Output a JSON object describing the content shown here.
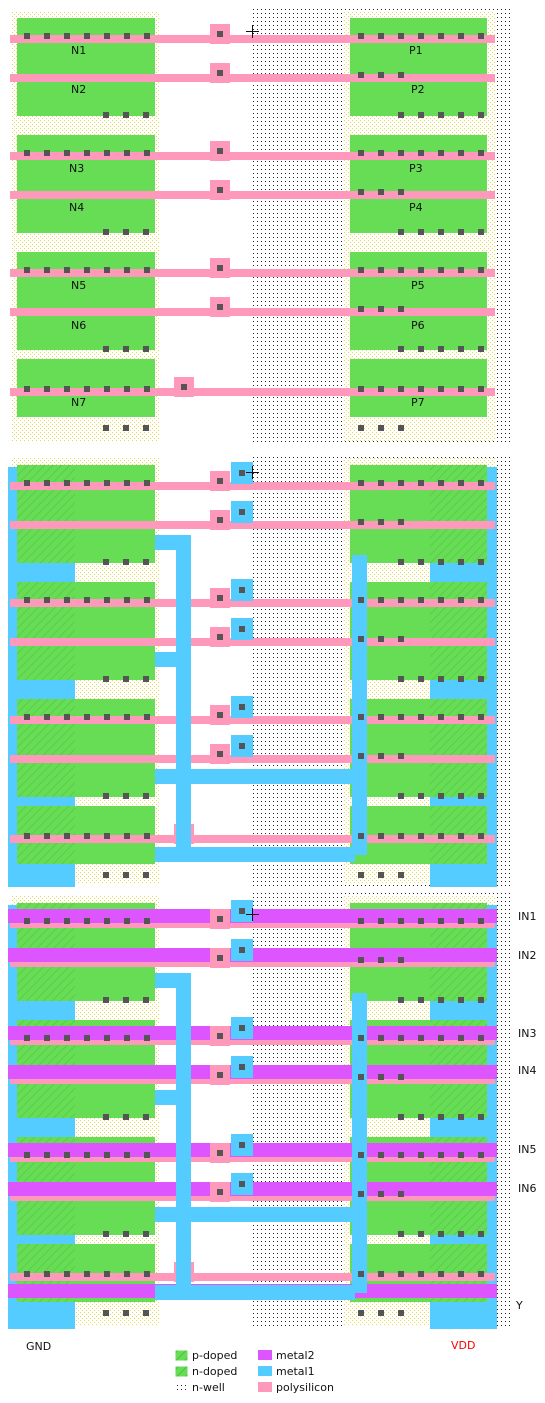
{
  "transistors": {
    "nmos": [
      "N1",
      "N2",
      "N3",
      "N4",
      "N5",
      "N6",
      "N7"
    ],
    "pmos": [
      "P1",
      "P2",
      "P3",
      "P4",
      "P5",
      "P6",
      "P7"
    ]
  },
  "pins": {
    "in1": "IN1",
    "in2": "IN2",
    "in3": "IN3",
    "in4": "IN4",
    "in5": "IN5",
    "in6": "IN6",
    "out": "Y"
  },
  "rails": {
    "gnd": "GND",
    "vdd": "VDD",
    "vdd_color": "#ff0000",
    "gnd_color": "#111111"
  },
  "legend": {
    "p_doped": "p-doped",
    "n_doped": "n-doped",
    "n_well": "n-well",
    "metal2": "metal2",
    "metal1": "metal1",
    "polysilicon": "polysilicon"
  },
  "colors": {
    "diffusion": "#66dd55",
    "polysilicon": "#ff99bb",
    "metal1": "#55ccff",
    "metal2": "#dd55ff",
    "contact": "#555555",
    "via": "#7766bb"
  }
}
